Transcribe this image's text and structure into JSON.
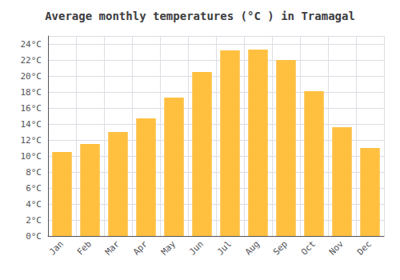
{
  "chart_data": {
    "type": "bar",
    "title": "Average monthly temperatures (°C ) in Tramagal",
    "categories": [
      "Jan",
      "Feb",
      "Mar",
      "Apr",
      "May",
      "Jun",
      "Jul",
      "Aug",
      "Sep",
      "Oct",
      "Nov",
      "Dec"
    ],
    "values": [
      10.5,
      11.5,
      13.0,
      14.7,
      17.3,
      20.5,
      23.2,
      23.3,
      22.0,
      18.1,
      13.6,
      11.0
    ],
    "color": "#FFC040",
    "ylim": [
      0,
      25
    ],
    "yticks": [
      {
        "value": 0,
        "label": "0°C"
      },
      {
        "value": 2,
        "label": "2°C"
      },
      {
        "value": 4,
        "label": "4°C"
      },
      {
        "value": 6,
        "label": "6°C"
      },
      {
        "value": 8,
        "label": "8°C"
      },
      {
        "value": 10,
        "label": "10°C"
      },
      {
        "value": 12,
        "label": "12°C"
      },
      {
        "value": 14,
        "label": "14°C"
      },
      {
        "value": 16,
        "label": "16°C"
      },
      {
        "value": 18,
        "label": "18°C"
      },
      {
        "value": 20,
        "label": "20°C"
      },
      {
        "value": 22,
        "label": "22°C"
      },
      {
        "value": 24,
        "label": "24°C"
      }
    ],
    "grid": true
  }
}
